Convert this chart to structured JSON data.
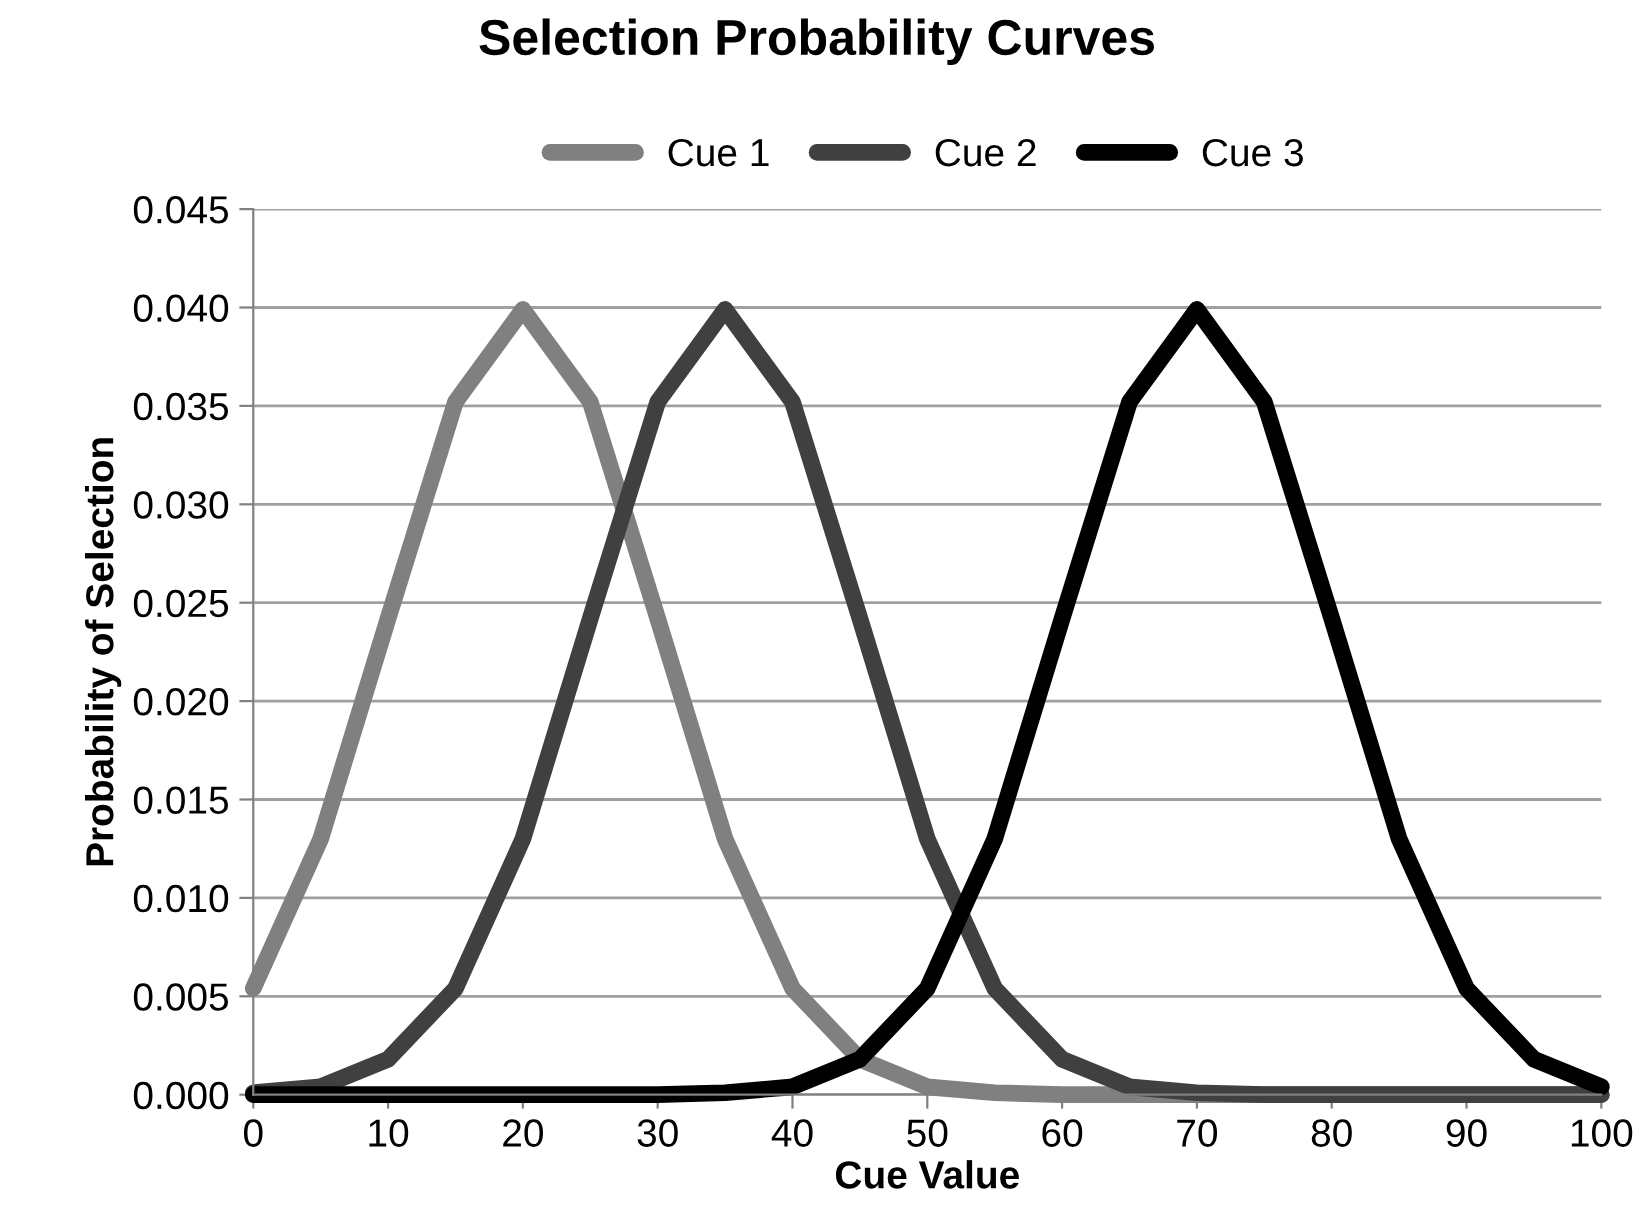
{
  "chart_data": {
    "type": "line",
    "title": "Selection Probability Curves",
    "xlabel": "Cue Value",
    "ylabel": "Probability of Selection",
    "x": [
      0,
      5,
      10,
      15,
      20,
      25,
      30,
      35,
      40,
      45,
      50,
      55,
      60,
      65,
      70,
      75,
      80,
      85,
      90,
      95,
      100
    ],
    "series": [
      {
        "name": "Cue 1",
        "color": "#808080",
        "values": [
          0.0054,
          0.013,
          0.0242,
          0.0352,
          0.0399,
          0.0352,
          0.0242,
          0.013,
          0.0054,
          0.0018,
          0.0004,
          0.0001,
          0,
          0,
          0,
          0,
          0,
          0,
          0,
          0,
          0
        ]
      },
      {
        "name": "Cue 2",
        "color": "#404040",
        "values": [
          0.0001,
          0.0004,
          0.0018,
          0.0054,
          0.013,
          0.0242,
          0.0352,
          0.0399,
          0.0352,
          0.0242,
          0.013,
          0.0054,
          0.0018,
          0.0004,
          0.0001,
          0,
          0,
          0,
          0,
          0,
          0
        ]
      },
      {
        "name": "Cue 3",
        "color": "#000000",
        "values": [
          0,
          0,
          0,
          0,
          0,
          0,
          0,
          0.0001,
          0.0004,
          0.0018,
          0.0054,
          0.013,
          0.0242,
          0.0352,
          0.0399,
          0.0352,
          0.0242,
          0.013,
          0.0054,
          0.0018,
          0.0004
        ]
      }
    ],
    "xlim": [
      0,
      100
    ],
    "xticks": [
      0,
      10,
      20,
      30,
      40,
      50,
      60,
      70,
      80,
      90,
      100
    ],
    "ylim": [
      0,
      0.045
    ],
    "yticks": [
      {
        "value": 0,
        "label": "0.000"
      },
      {
        "value": 0.005,
        "label": "0.005"
      },
      {
        "value": 0.01,
        "label": "0.010"
      },
      {
        "value": 0.015,
        "label": "0.015"
      },
      {
        "value": 0.02,
        "label": "0.020"
      },
      {
        "value": 0.025,
        "label": "0.025"
      },
      {
        "value": 0.03,
        "label": "0.030"
      },
      {
        "value": 0.035,
        "label": "0.035"
      },
      {
        "value": 0.04,
        "label": "0.040"
      },
      {
        "value": 0.045,
        "label": "0.045"
      }
    ],
    "grid": "y",
    "legend": "top",
    "marker": "none",
    "line_style": "solid"
  }
}
